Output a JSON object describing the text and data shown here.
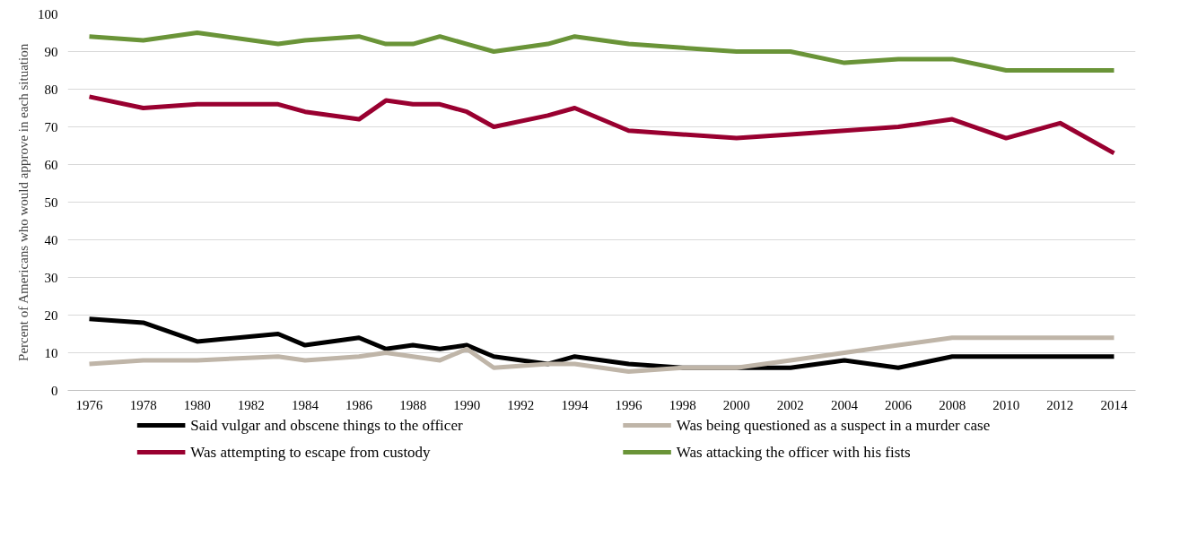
{
  "chart_data": {
    "type": "line",
    "ylabel": "Percent of Americans who would approve in each situation",
    "x": [
      1976,
      1978,
      1980,
      1983,
      1984,
      1986,
      1987,
      1988,
      1989,
      1990,
      1991,
      1993,
      1994,
      1996,
      1998,
      2000,
      2002,
      2004,
      2006,
      2008,
      2010,
      2012,
      2014
    ],
    "series": [
      {
        "name": "Said vulgar and obscene things to the officer",
        "color": "#000000",
        "values": [
          19,
          18,
          13,
          15,
          12,
          14,
          11,
          12,
          11,
          12,
          9,
          7,
          9,
          7,
          6,
          6,
          6,
          8,
          6,
          9,
          9,
          9,
          9
        ]
      },
      {
        "name": "Was being questioned as a suspect in a murder case",
        "color": "#bfb5a8",
        "values": [
          7,
          8,
          8,
          9,
          8,
          9,
          10,
          9,
          8,
          11,
          6,
          7,
          7,
          5,
          6,
          6,
          8,
          10,
          12,
          14,
          14,
          14,
          14
        ]
      },
      {
        "name": "Was attempting to escape from custody",
        "color": "#990030",
        "values": [
          78,
          75,
          76,
          76,
          74,
          72,
          77,
          76,
          76,
          74,
          70,
          73,
          75,
          69,
          68,
          67,
          68,
          69,
          70,
          72,
          67,
          71,
          63
        ]
      },
      {
        "name": "Was attacking the officer with his fists",
        "color": "#6a9438",
        "values": [
          94,
          93,
          95,
          92,
          93,
          94,
          92,
          92,
          94,
          92,
          90,
          92,
          94,
          92,
          91,
          90,
          90,
          87,
          88,
          88,
          85,
          85,
          85
        ]
      }
    ],
    "xlim": [
      1975.2,
      2014.8
    ],
    "xticks": [
      1976,
      1978,
      1980,
      1982,
      1984,
      1986,
      1988,
      1990,
      1992,
      1994,
      1996,
      1998,
      2000,
      2002,
      2004,
      2006,
      2008,
      2010,
      2012,
      2014
    ],
    "ylim": [
      0,
      100
    ],
    "yticks": [
      0,
      10,
      20,
      30,
      40,
      50,
      60,
      70,
      80,
      90,
      100
    ],
    "grid": "y",
    "legend": "bottom",
    "marker": "none",
    "line_style": "solid"
  }
}
